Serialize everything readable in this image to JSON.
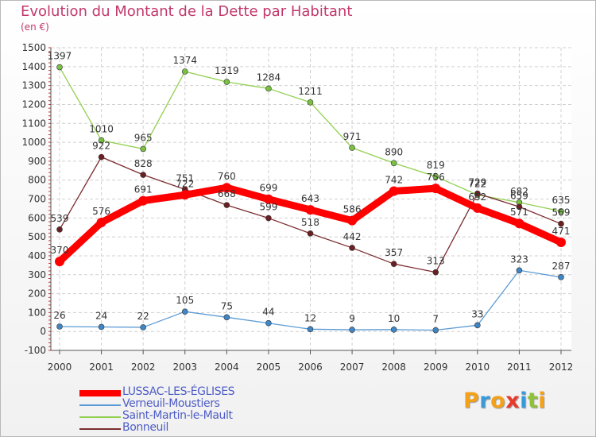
{
  "title": "Evolution du Montant de la Dette par Habitant",
  "unit_label": "(en €)",
  "logo": {
    "letters": [
      "P",
      "r",
      "o",
      "x",
      "i",
      "t",
      "i"
    ],
    "colors": [
      "#f4a11a",
      "#3a9ad9",
      "#f4a11a",
      "#e83a2a",
      "#3a9ad9",
      "#8fc13d",
      "#f4a11a"
    ]
  },
  "chart_data": {
    "type": "line",
    "x": [
      "2000",
      "2001",
      "2002",
      "2003",
      "2004",
      "2005",
      "2006",
      "2007",
      "2008",
      "2009",
      "2010",
      "2011",
      "2012"
    ],
    "ylim": [
      -100,
      1500
    ],
    "yticks": [
      "1500",
      "1400",
      "1300",
      "1200",
      "1100",
      "1000",
      "900",
      "800",
      "700",
      "600",
      "500",
      "400",
      "300",
      "200",
      "100",
      "0",
      "-100"
    ],
    "grid": true,
    "legend_position": "bottom-left",
    "series": [
      {
        "name": "LUSSAC-LES-ÉGLISES",
        "color": "#ff0000",
        "highlight": true,
        "values": [
          370,
          576,
          691,
          722,
          760,
          699,
          643,
          586,
          742,
          756,
          652,
          571,
          471
        ]
      },
      {
        "name": "Verneuil-Moustiers",
        "color": "#5b9bd5",
        "highlight": false,
        "values": [
          26,
          24,
          22,
          105,
          75,
          44,
          12,
          9,
          10,
          7,
          33,
          323,
          287
        ]
      },
      {
        "name": "Saint-Martin-le-Mault",
        "color": "#92d050",
        "highlight": false,
        "values": [
          1397,
          1010,
          965,
          1374,
          1319,
          1284,
          1211,
          971,
          890,
          819,
          722,
          682,
          635
        ]
      },
      {
        "name": "Bonneuil",
        "color": "#7b2d30",
        "highlight": false,
        "values": [
          539,
          922,
          828,
          751,
          668,
          599,
          518,
          442,
          357,
          313,
          729,
          659,
          569
        ]
      }
    ]
  }
}
